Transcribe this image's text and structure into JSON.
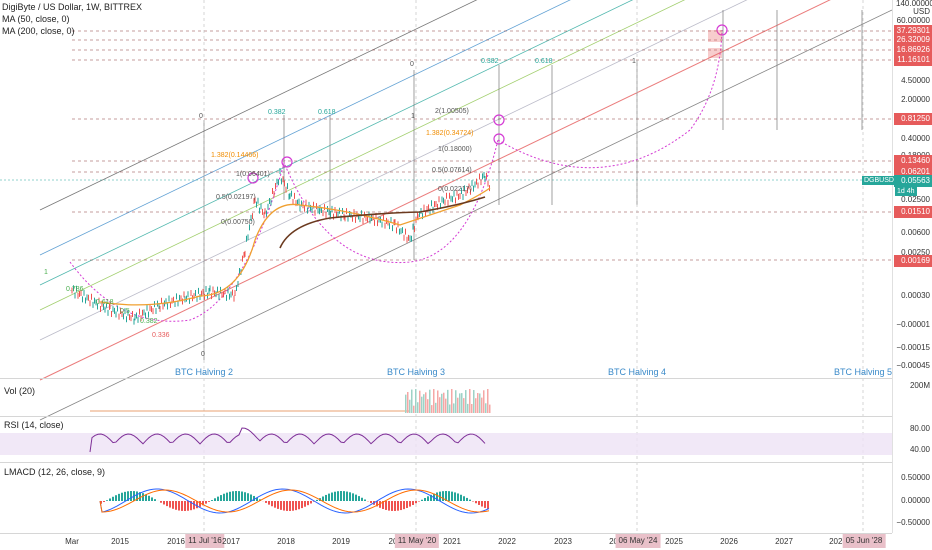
{
  "header": {
    "symbol_line": "DigiByte / US Dollar, 1W, BITTREX",
    "ma50": "MA (50, close, 0)",
    "ma200": "MA (200, close, 0)"
  },
  "panes": {
    "vol": "Vol (20)",
    "rsi": "RSI (14, close)",
    "lmacd": "LMACD (12, 26, close, 9)"
  },
  "symbol_badge": "DGBUSD",
  "timeframe_badge": "1d 4h",
  "price_axis": {
    "unit": "USD",
    "ticks": [
      "140.00000",
      "60.00000",
      "4.50000",
      "2.00000",
      "0.40000",
      "0.18000",
      "0.02500",
      "0.00600",
      "0.00250",
      "0.00030",
      "−0.00001",
      "−0.00015",
      "−0.00045"
    ]
  },
  "price_tags": [
    {
      "value": "37.29301",
      "color": "#e65b5b"
    },
    {
      "value": "26.32009",
      "color": "#e65b5b"
    },
    {
      "value": "16.86926",
      "color": "#e65b5b"
    },
    {
      "value": "11.16101",
      "color": "#e65b5b"
    },
    {
      "value": "0.81250",
      "color": "#e65b5b"
    },
    {
      "value": "0.13460",
      "color": "#e65b5b"
    },
    {
      "value": "0.06201",
      "color": "#e65b5b"
    },
    {
      "value": "0.05563",
      "color": "#26a69a"
    },
    {
      "value": "0.01510",
      "color": "#e65b5b"
    },
    {
      "value": "0.00169",
      "color": "#e65b5b"
    }
  ],
  "vol_axis": [
    "200M"
  ],
  "rsi_axis": [
    "80.00",
    "40.00"
  ],
  "lmacd_axis": [
    "0.50000",
    "0.00000",
    "−0.50000"
  ],
  "time_axis": [
    {
      "label": "Mar"
    },
    {
      "label": "2015"
    },
    {
      "label": "2016"
    },
    {
      "label": "11 Jul '16",
      "highlight": true
    },
    {
      "label": "2017"
    },
    {
      "label": "2018"
    },
    {
      "label": "2019"
    },
    {
      "label": "20"
    },
    {
      "label": "11 May '20",
      "highlight": true
    },
    {
      "label": "2021"
    },
    {
      "label": "2022"
    },
    {
      "label": "2023"
    },
    {
      "label": "2024"
    },
    {
      "label": "06 May '24",
      "highlight": true
    },
    {
      "label": "2025"
    },
    {
      "label": "2026"
    },
    {
      "label": "2027"
    },
    {
      "label": "2028"
    },
    {
      "label": "05 Jun '28",
      "highlight": true
    }
  ],
  "halvings": [
    "BTC Halving 2",
    "BTC Halving 3",
    "BTC Halving 4",
    "BTC Halving 5"
  ],
  "fib_labels_2014": [
    "1",
    "0.786",
    "0.618",
    "0.5",
    "0.382",
    "0.336"
  ],
  "fib_time_labels": [
    "0",
    "0.382",
    "0.618",
    "1",
    "0",
    "0.382",
    "0.618",
    "1",
    "0"
  ],
  "fib_ext_2017": [
    "1.382(0.14466)",
    "1(0.06401)",
    "0.5(0.02197)",
    "0(0.00750)"
  ],
  "fib_ext_2021": [
    "2(1.00505)",
    "1.382(0.34724)",
    "1(0.18000)",
    "0.5(0.07614)",
    "0(0.02217)"
  ],
  "colors": {
    "up": "#26a69a",
    "down": "#ef5350",
    "ma50": "#f0a030",
    "ma200": "#6b3a1f",
    "rsi": "#7e2f97",
    "fib_arc": "#d43bd4",
    "accent_blue": "#3a8ac9"
  }
}
